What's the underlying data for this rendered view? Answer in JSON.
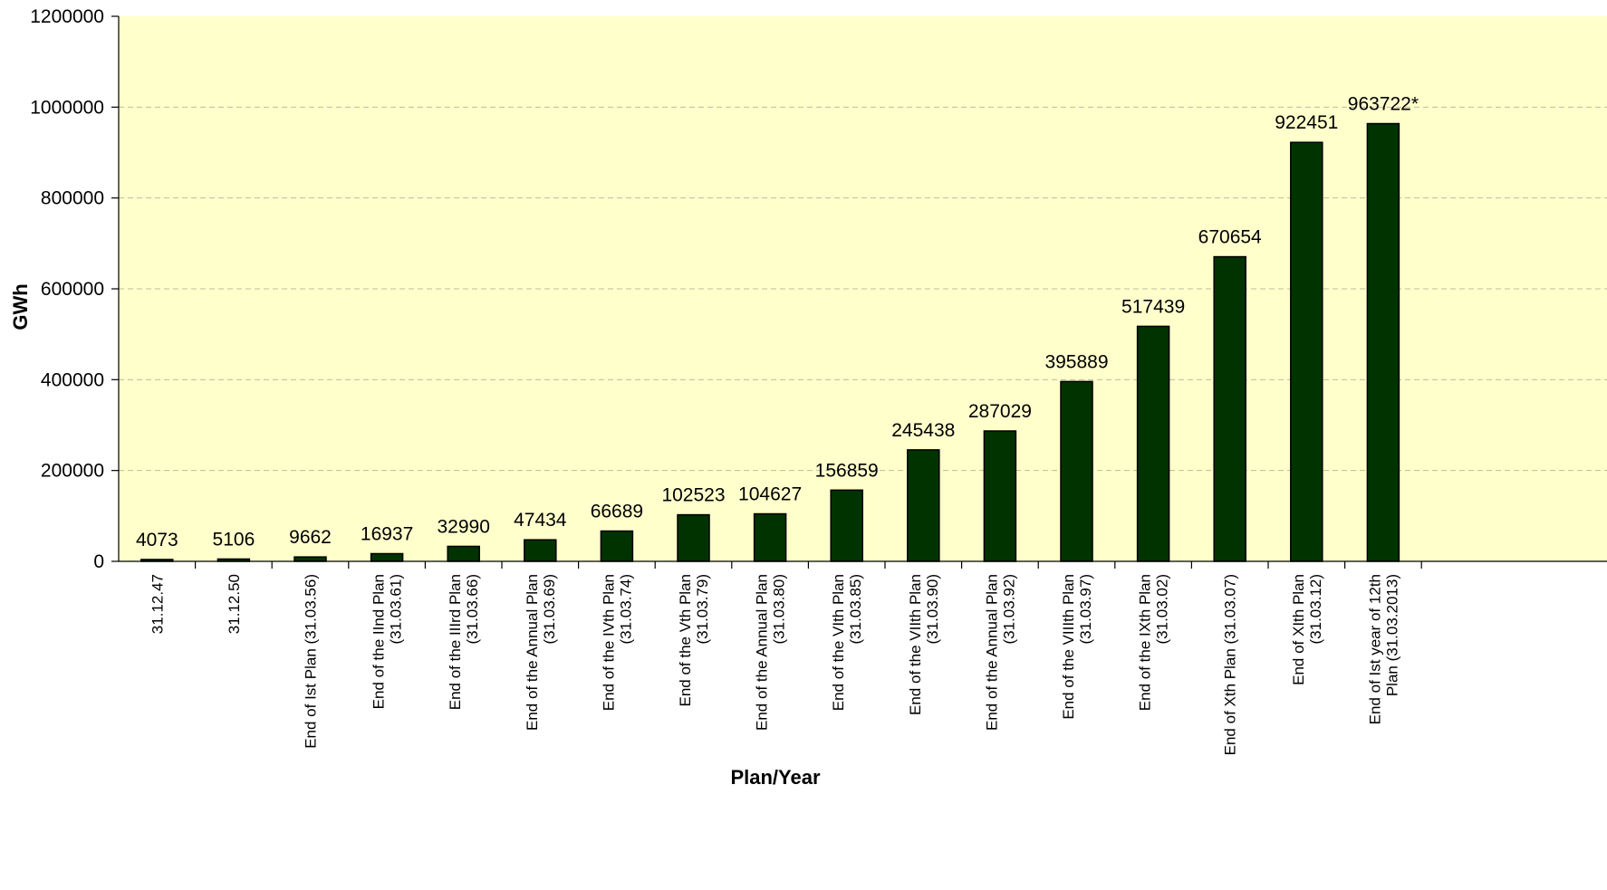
{
  "chart_data": {
    "type": "bar",
    "title": "",
    "xlabel": "Plan/Year",
    "ylabel": "GWh",
    "ylim": [
      0,
      1200000
    ],
    "yticks": [
      0,
      200000,
      400000,
      600000,
      800000,
      1000000,
      1200000
    ],
    "grid": true,
    "legend": "none",
    "categories": [
      [
        "31.12.47"
      ],
      [
        "31.12.50"
      ],
      [
        "End of Ist Plan  (31.03.56)"
      ],
      [
        "End of the IInd Plan",
        "(31.03.61)"
      ],
      [
        "End of the IIIrd Plan",
        "(31.03.66)"
      ],
      [
        "End of the  Annual Plan",
        "(31.03.69)"
      ],
      [
        "End of the IVth Plan",
        "(31.03.74)"
      ],
      [
        "End of the Vth Plan",
        "(31.03.79)"
      ],
      [
        "End of the Annual Plan",
        "(31.03.80)"
      ],
      [
        "End of the VIth Plan",
        "(31.03.85)"
      ],
      [
        "End of the VIIth Plan",
        "(31.03.90)"
      ],
      [
        "End of the Annual Plan",
        "(31.03.92)"
      ],
      [
        "End of the VIIIth Plan",
        "(31.03.97)"
      ],
      [
        "End of the IXth Plan",
        "(31.03.02)"
      ],
      [
        "End of Xth Plan (31.03.07)"
      ],
      [
        "End of XIth Plan",
        "(31.03.12)"
      ],
      [
        "End of Ist year of 12th",
        "Plan (31.03.2013)"
      ]
    ],
    "values": [
      4073,
      5106,
      9662,
      16937,
      32990,
      47434,
      66689,
      102523,
      104627,
      156859,
      245438,
      287029,
      395889,
      517439,
      670654,
      922451,
      963722
    ],
    "data_labels": [
      "4073",
      "5106",
      "9662",
      "16937",
      "32990",
      "47434",
      "66689",
      "102523",
      "104627",
      "156859",
      "245438",
      "287029",
      "395889",
      "517439",
      "670654",
      "922451",
      "963722*"
    ],
    "colors": {
      "plot_background": "#FFFFCC",
      "bar_fill": "#003300",
      "bar_stroke": "#000000",
      "gridline": "#BDBDA0"
    }
  }
}
